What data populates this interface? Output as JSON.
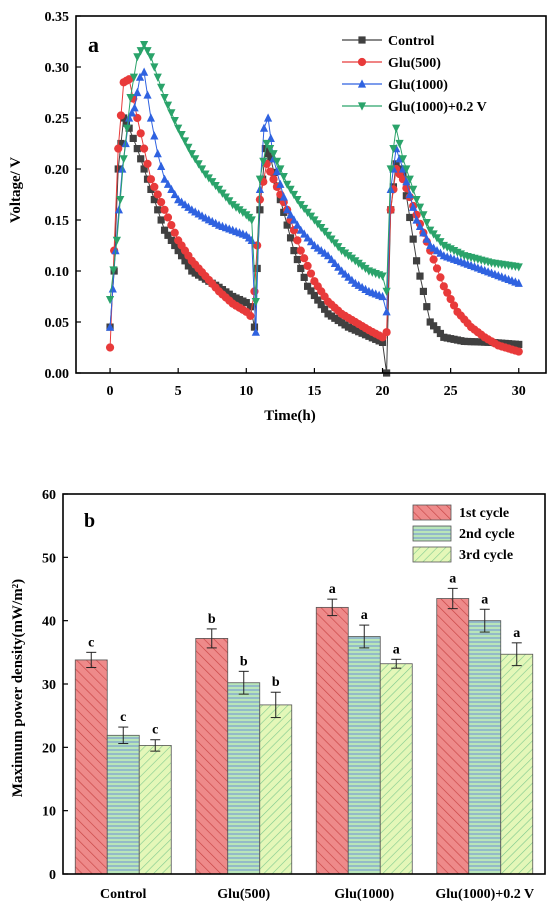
{
  "chart_data": [
    {
      "type": "line",
      "panel_label": "a",
      "xlabel": "Time(h)",
      "ylabel": "Voltage/ V",
      "xlim": [
        -2.5,
        32
      ],
      "ylim": [
        0,
        0.35
      ],
      "xticks": [
        0,
        5,
        10,
        15,
        20,
        25,
        30
      ],
      "yticks": [
        "0.00",
        "0.05",
        "0.10",
        "0.15",
        "0.20",
        "0.25",
        "0.30",
        "0.35"
      ],
      "legend": "top-right",
      "series": [
        {
          "name": "Control",
          "color": "#404040",
          "marker": "square",
          "points": [
            [
              0,
              0.045
            ],
            [
              0.3,
              0.1
            ],
            [
              0.6,
              0.2
            ],
            [
              1.0,
              0.25
            ],
            [
              1.4,
              0.24
            ],
            [
              2,
              0.22
            ],
            [
              3,
              0.18
            ],
            [
              4,
              0.14
            ],
            [
              5,
              0.12
            ],
            [
              6,
              0.1
            ],
            [
              7,
              0.092
            ],
            [
              8,
              0.084
            ],
            [
              9,
              0.075
            ],
            [
              10,
              0.069
            ],
            [
              10.3,
              0.065
            ],
            [
              10.6,
              0.045
            ],
            [
              11,
              0.16
            ],
            [
              11.4,
              0.22
            ],
            [
              11.8,
              0.21
            ],
            [
              12.5,
              0.17
            ],
            [
              13.5,
              0.12
            ],
            [
              14.5,
              0.085
            ],
            [
              16,
              0.058
            ],
            [
              17.5,
              0.045
            ],
            [
              19,
              0.036
            ],
            [
              20,
              0.03
            ],
            [
              20.3,
              0.0
            ],
            [
              20.6,
              0.16
            ],
            [
              21,
              0.205
            ],
            [
              21.5,
              0.195
            ],
            [
              22.5,
              0.11
            ],
            [
              23.5,
              0.05
            ],
            [
              24.5,
              0.035
            ],
            [
              26,
              0.031
            ],
            [
              28,
              0.03
            ],
            [
              30,
              0.028
            ]
          ]
        },
        {
          "name": "Glu(500)",
          "color": "#e83a3a",
          "marker": "circle",
          "points": [
            [
              0,
              0.025
            ],
            [
              0.3,
              0.12
            ],
            [
              0.6,
              0.22
            ],
            [
              1.0,
              0.285
            ],
            [
              1.4,
              0.288
            ],
            [
              2,
              0.25
            ],
            [
              3,
              0.19
            ],
            [
              4,
              0.16
            ],
            [
              5,
              0.13
            ],
            [
              6,
              0.11
            ],
            [
              7,
              0.095
            ],
            [
              8,
              0.08
            ],
            [
              9,
              0.068
            ],
            [
              10,
              0.06
            ],
            [
              10.3,
              0.056
            ],
            [
              10.6,
              0.08
            ],
            [
              11,
              0.17
            ],
            [
              11.5,
              0.205
            ],
            [
              12,
              0.19
            ],
            [
              13,
              0.16
            ],
            [
              14,
              0.12
            ],
            [
              15,
              0.09
            ],
            [
              16,
              0.07
            ],
            [
              17,
              0.058
            ],
            [
              18,
              0.05
            ],
            [
              19,
              0.042
            ],
            [
              20,
              0.035
            ],
            [
              20.3,
              0.04
            ],
            [
              20.6,
              0.16
            ],
            [
              21,
              0.2
            ],
            [
              21.5,
              0.19
            ],
            [
              22.5,
              0.155
            ],
            [
              23.5,
              0.12
            ],
            [
              24.5,
              0.085
            ],
            [
              25.5,
              0.06
            ],
            [
              26.5,
              0.045
            ],
            [
              27.5,
              0.035
            ],
            [
              28.5,
              0.027
            ],
            [
              30,
              0.021
            ]
          ]
        },
        {
          "name": "Glu(1000)",
          "color": "#2f62e0",
          "marker": "triangle-up",
          "points": [
            [
              0,
              0.045
            ],
            [
              0.4,
              0.12
            ],
            [
              0.9,
              0.2
            ],
            [
              1.4,
              0.25
            ],
            [
              1.8,
              0.26
            ],
            [
              2.2,
              0.29
            ],
            [
              2.5,
              0.295
            ],
            [
              3,
              0.25
            ],
            [
              3.5,
              0.215
            ],
            [
              4,
              0.19
            ],
            [
              5,
              0.17
            ],
            [
              6,
              0.16
            ],
            [
              7,
              0.152
            ],
            [
              8,
              0.145
            ],
            [
              9,
              0.14
            ],
            [
              10,
              0.135
            ],
            [
              10.4,
              0.13
            ],
            [
              10.7,
              0.04
            ],
            [
              11,
              0.18
            ],
            [
              11.3,
              0.24
            ],
            [
              11.6,
              0.25
            ],
            [
              12,
              0.21
            ],
            [
              13,
              0.16
            ],
            [
              14,
              0.14
            ],
            [
              15,
              0.125
            ],
            [
              16,
              0.115
            ],
            [
              17,
              0.1
            ],
            [
              18,
              0.088
            ],
            [
              19,
              0.08
            ],
            [
              20,
              0.075
            ],
            [
              20.3,
              0.06
            ],
            [
              20.6,
              0.18
            ],
            [
              21,
              0.22
            ],
            [
              21.5,
              0.2
            ],
            [
              22.5,
              0.15
            ],
            [
              23.5,
              0.125
            ],
            [
              24.5,
              0.115
            ],
            [
              26,
              0.108
            ],
            [
              28,
              0.098
            ],
            [
              30,
              0.088
            ]
          ]
        },
        {
          "name": "Glu(1000)+0.2 V",
          "color": "#2aa36a",
          "marker": "triangle-down",
          "points": [
            [
              0,
              0.072
            ],
            [
              0.5,
              0.13
            ],
            [
              1,
              0.21
            ],
            [
              1.5,
              0.27
            ],
            [
              2,
              0.31
            ],
            [
              2.5,
              0.322
            ],
            [
              3,
              0.31
            ],
            [
              4,
              0.27
            ],
            [
              5,
              0.24
            ],
            [
              6,
              0.215
            ],
            [
              7,
              0.195
            ],
            [
              8,
              0.18
            ],
            [
              9,
              0.165
            ],
            [
              10,
              0.155
            ],
            [
              10.4,
              0.15
            ],
            [
              10.7,
              0.07
            ],
            [
              11,
              0.19
            ],
            [
              11.5,
              0.225
            ],
            [
              12,
              0.215
            ],
            [
              13,
              0.185
            ],
            [
              14,
              0.165
            ],
            [
              15,
              0.15
            ],
            [
              16,
              0.135
            ],
            [
              17,
              0.12
            ],
            [
              18,
              0.11
            ],
            [
              19,
              0.1
            ],
            [
              20,
              0.095
            ],
            [
              20.3,
              0.08
            ],
            [
              20.6,
              0.2
            ],
            [
              21,
              0.24
            ],
            [
              21.5,
              0.21
            ],
            [
              22.5,
              0.17
            ],
            [
              23.5,
              0.14
            ],
            [
              24.5,
              0.125
            ],
            [
              26,
              0.115
            ],
            [
              28,
              0.108
            ],
            [
              30,
              0.104
            ]
          ]
        }
      ]
    },
    {
      "type": "bar",
      "panel_label": "b",
      "xlabel": "",
      "ylabel": "Maximum power density(mW/m²)",
      "ylim": [
        0,
        60
      ],
      "yticks": [
        "0",
        "10",
        "20",
        "30",
        "40",
        "50",
        "60"
      ],
      "categories": [
        "Control",
        "Glu(500)",
        "Glu(1000)",
        "Glu(1000)+0.2 V"
      ],
      "legend": "top-right",
      "series": [
        {
          "name": "1st cycle",
          "color": "#ee8a8a",
          "hatch": "diagonal",
          "hatch_color": "#d0504f",
          "values": [
            33.8,
            37.2,
            42.1,
            43.5
          ],
          "errors": [
            1.2,
            1.5,
            1.3,
            1.6
          ],
          "letters": [
            "c",
            "b",
            "a",
            "a"
          ]
        },
        {
          "name": "2nd cycle",
          "color": "#b9e6b9",
          "hatch": "horizontal",
          "hatch_color": "#6f8fd6",
          "values": [
            21.9,
            30.2,
            37.5,
            40.0
          ],
          "errors": [
            1.3,
            1.8,
            1.8,
            1.8
          ],
          "letters": [
            "c",
            "b",
            "a",
            "a"
          ]
        },
        {
          "name": "3rd cycle",
          "color": "#e4f7b8",
          "hatch": "anti-diagonal",
          "hatch_color": "#7ec98e",
          "values": [
            20.3,
            26.7,
            33.2,
            34.7
          ],
          "errors": [
            0.9,
            2.0,
            0.7,
            1.8
          ],
          "letters": [
            "c",
            "b",
            "a",
            "a"
          ]
        }
      ]
    }
  ]
}
